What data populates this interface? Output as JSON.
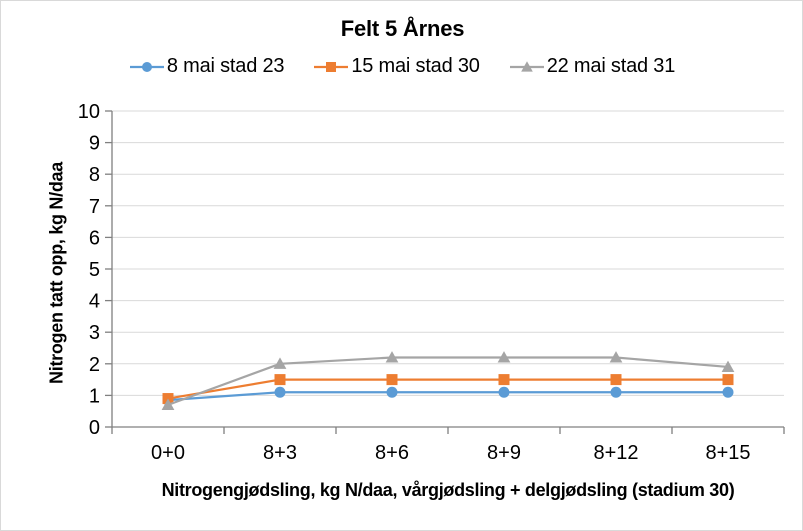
{
  "window": {
    "background": "#ffffff",
    "border_color": "#d9d9d9"
  },
  "chart_data": {
    "type": "line",
    "title": "Felt 5 Årnes",
    "xlabel": "Nitrogengjødsling, kg N/daa, vårgjødsling + delgjødsling (stadium 30)",
    "ylabel": "Nitrogen tatt opp, kg N/daa",
    "categories": [
      "0+0",
      "8+3",
      "8+6",
      "8+9",
      "8+12",
      "8+15"
    ],
    "series": [
      {
        "name": "8 mai stad 23",
        "color": "#5B9BD5",
        "marker": "circle",
        "values": [
          0.85,
          1.1,
          1.1,
          1.1,
          1.1,
          1.1
        ]
      },
      {
        "name": "15 mai stad 30",
        "color": "#ED7D31",
        "marker": "square",
        "values": [
          0.9,
          1.5,
          1.5,
          1.5,
          1.5,
          1.5
        ]
      },
      {
        "name": "22 mai stad 31",
        "color": "#A5A5A5",
        "marker": "triangle",
        "values": [
          0.7,
          2.0,
          2.2,
          2.2,
          2.2,
          1.9
        ]
      }
    ],
    "ylim": [
      0,
      10
    ],
    "ytick_step": 1,
    "grid": "horizontal",
    "grid_color": "#d9d9d9",
    "axis_color": "#808080",
    "legend_position": "top"
  }
}
